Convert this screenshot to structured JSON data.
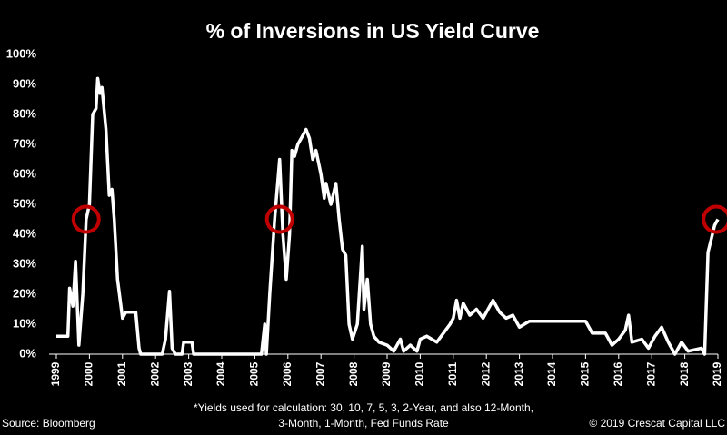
{
  "chart_data": {
    "type": "line",
    "title": "% of Inversions in US Yield Curve",
    "footnote": [
      "*Yields used for calculation:  30, 10, 7, 5, 3, 2-Year, and also 12-Month,",
      "3-Month, 1-Month, Fed Funds Rate"
    ],
    "source": "Source: Bloomberg",
    "copyright": "© 2019 Crescat Capital LLC",
    "xlim": [
      1999,
      2019
    ],
    "xticks": [
      1999,
      2000,
      2001,
      2002,
      2003,
      2004,
      2005,
      2006,
      2007,
      2008,
      2009,
      2010,
      2011,
      2012,
      2013,
      2014,
      2015,
      2016,
      2017,
      2018,
      2019
    ],
    "ylim": [
      0,
      100
    ],
    "yticks": [
      {
        "value": 0,
        "label": "0%"
      },
      {
        "value": 10,
        "label": "10%"
      },
      {
        "value": 20,
        "label": "20%"
      },
      {
        "value": 30,
        "label": "30%"
      },
      {
        "value": 40,
        "label": "40%"
      },
      {
        "value": 50,
        "label": "50%"
      },
      {
        "value": 60,
        "label": "60%"
      },
      {
        "value": 70,
        "label": "70%"
      },
      {
        "value": 80,
        "label": "80%"
      },
      {
        "value": 90,
        "label": "90%"
      },
      {
        "value": 100,
        "label": "100%"
      }
    ],
    "grid": false,
    "series": [
      {
        "color": "#ffffff",
        "x": [
          1999.0,
          1999.35,
          1999.4,
          1999.5,
          1999.58,
          1999.68,
          1999.8,
          1999.9,
          2000.0,
          2000.1,
          2000.2,
          2000.25,
          2000.32,
          2000.38,
          2000.5,
          2000.6,
          2000.68,
          2000.75,
          2000.85,
          2001.0,
          2001.1,
          2001.4,
          2001.5,
          2001.55,
          2002.2,
          2002.3,
          2002.42,
          2002.5,
          2002.6,
          2002.8,
          2002.85,
          2003.1,
          2003.15,
          2005.2,
          2005.3,
          2005.35,
          2005.45,
          2005.6,
          2005.75,
          2005.85,
          2005.95,
          2006.05,
          2006.12,
          2006.2,
          2006.3,
          2006.45,
          2006.55,
          2006.65,
          2006.75,
          2006.85,
          2007.0,
          2007.1,
          2007.15,
          2007.3,
          2007.45,
          2007.55,
          2007.65,
          2007.75,
          2007.85,
          2007.95,
          2008.1,
          2008.25,
          2008.3,
          2008.4,
          2008.5,
          2008.6,
          2008.75,
          2009.0,
          2009.2,
          2009.4,
          2009.5,
          2009.7,
          2009.9,
          2010.0,
          2010.2,
          2010.5,
          2010.7,
          2010.9,
          2011.0,
          2011.1,
          2011.2,
          2011.3,
          2011.5,
          2011.7,
          2011.9,
          2012.0,
          2012.2,
          2012.4,
          2012.6,
          2012.8,
          2013.0,
          2013.3,
          2014.5,
          2015.0,
          2015.2,
          2015.6,
          2015.8,
          2016.0,
          2016.2,
          2016.3,
          2016.4,
          2016.7,
          2016.9,
          2017.1,
          2017.3,
          2017.5,
          2017.7,
          2017.9,
          2018.1,
          2018.5,
          2018.6,
          2018.7,
          2018.9,
          2019.0
        ],
        "values": [
          6,
          6,
          22,
          16,
          31,
          3,
          20,
          45,
          50,
          80,
          82,
          92,
          87,
          89,
          75,
          53,
          55,
          45,
          25,
          12,
          14,
          14,
          2,
          0,
          0,
          5,
          21,
          2,
          0,
          0,
          4,
          4,
          0,
          0,
          10,
          0,
          20,
          45,
          65,
          40,
          25,
          40,
          68,
          66,
          70,
          73,
          75,
          72,
          65,
          68,
          60,
          52,
          57,
          50,
          57,
          45,
          35,
          33,
          10,
          5,
          10,
          36,
          15,
          25,
          10,
          6,
          4,
          3,
          1,
          5,
          1,
          3,
          1,
          5,
          6,
          4,
          7,
          10,
          12,
          18,
          12,
          17,
          13,
          15,
          12,
          14,
          18,
          14,
          12,
          13,
          9,
          11,
          11,
          11,
          7,
          7,
          3,
          5,
          8,
          13,
          4,
          5,
          2,
          6,
          9,
          4,
          0,
          4,
          1,
          2,
          0,
          34,
          43,
          45
        ]
      }
    ],
    "highlights": {
      "color": "#c00000",
      "x": [
        1999.9,
        2005.75,
        2018.95
      ],
      "values": [
        45,
        45,
        45
      ]
    }
  }
}
